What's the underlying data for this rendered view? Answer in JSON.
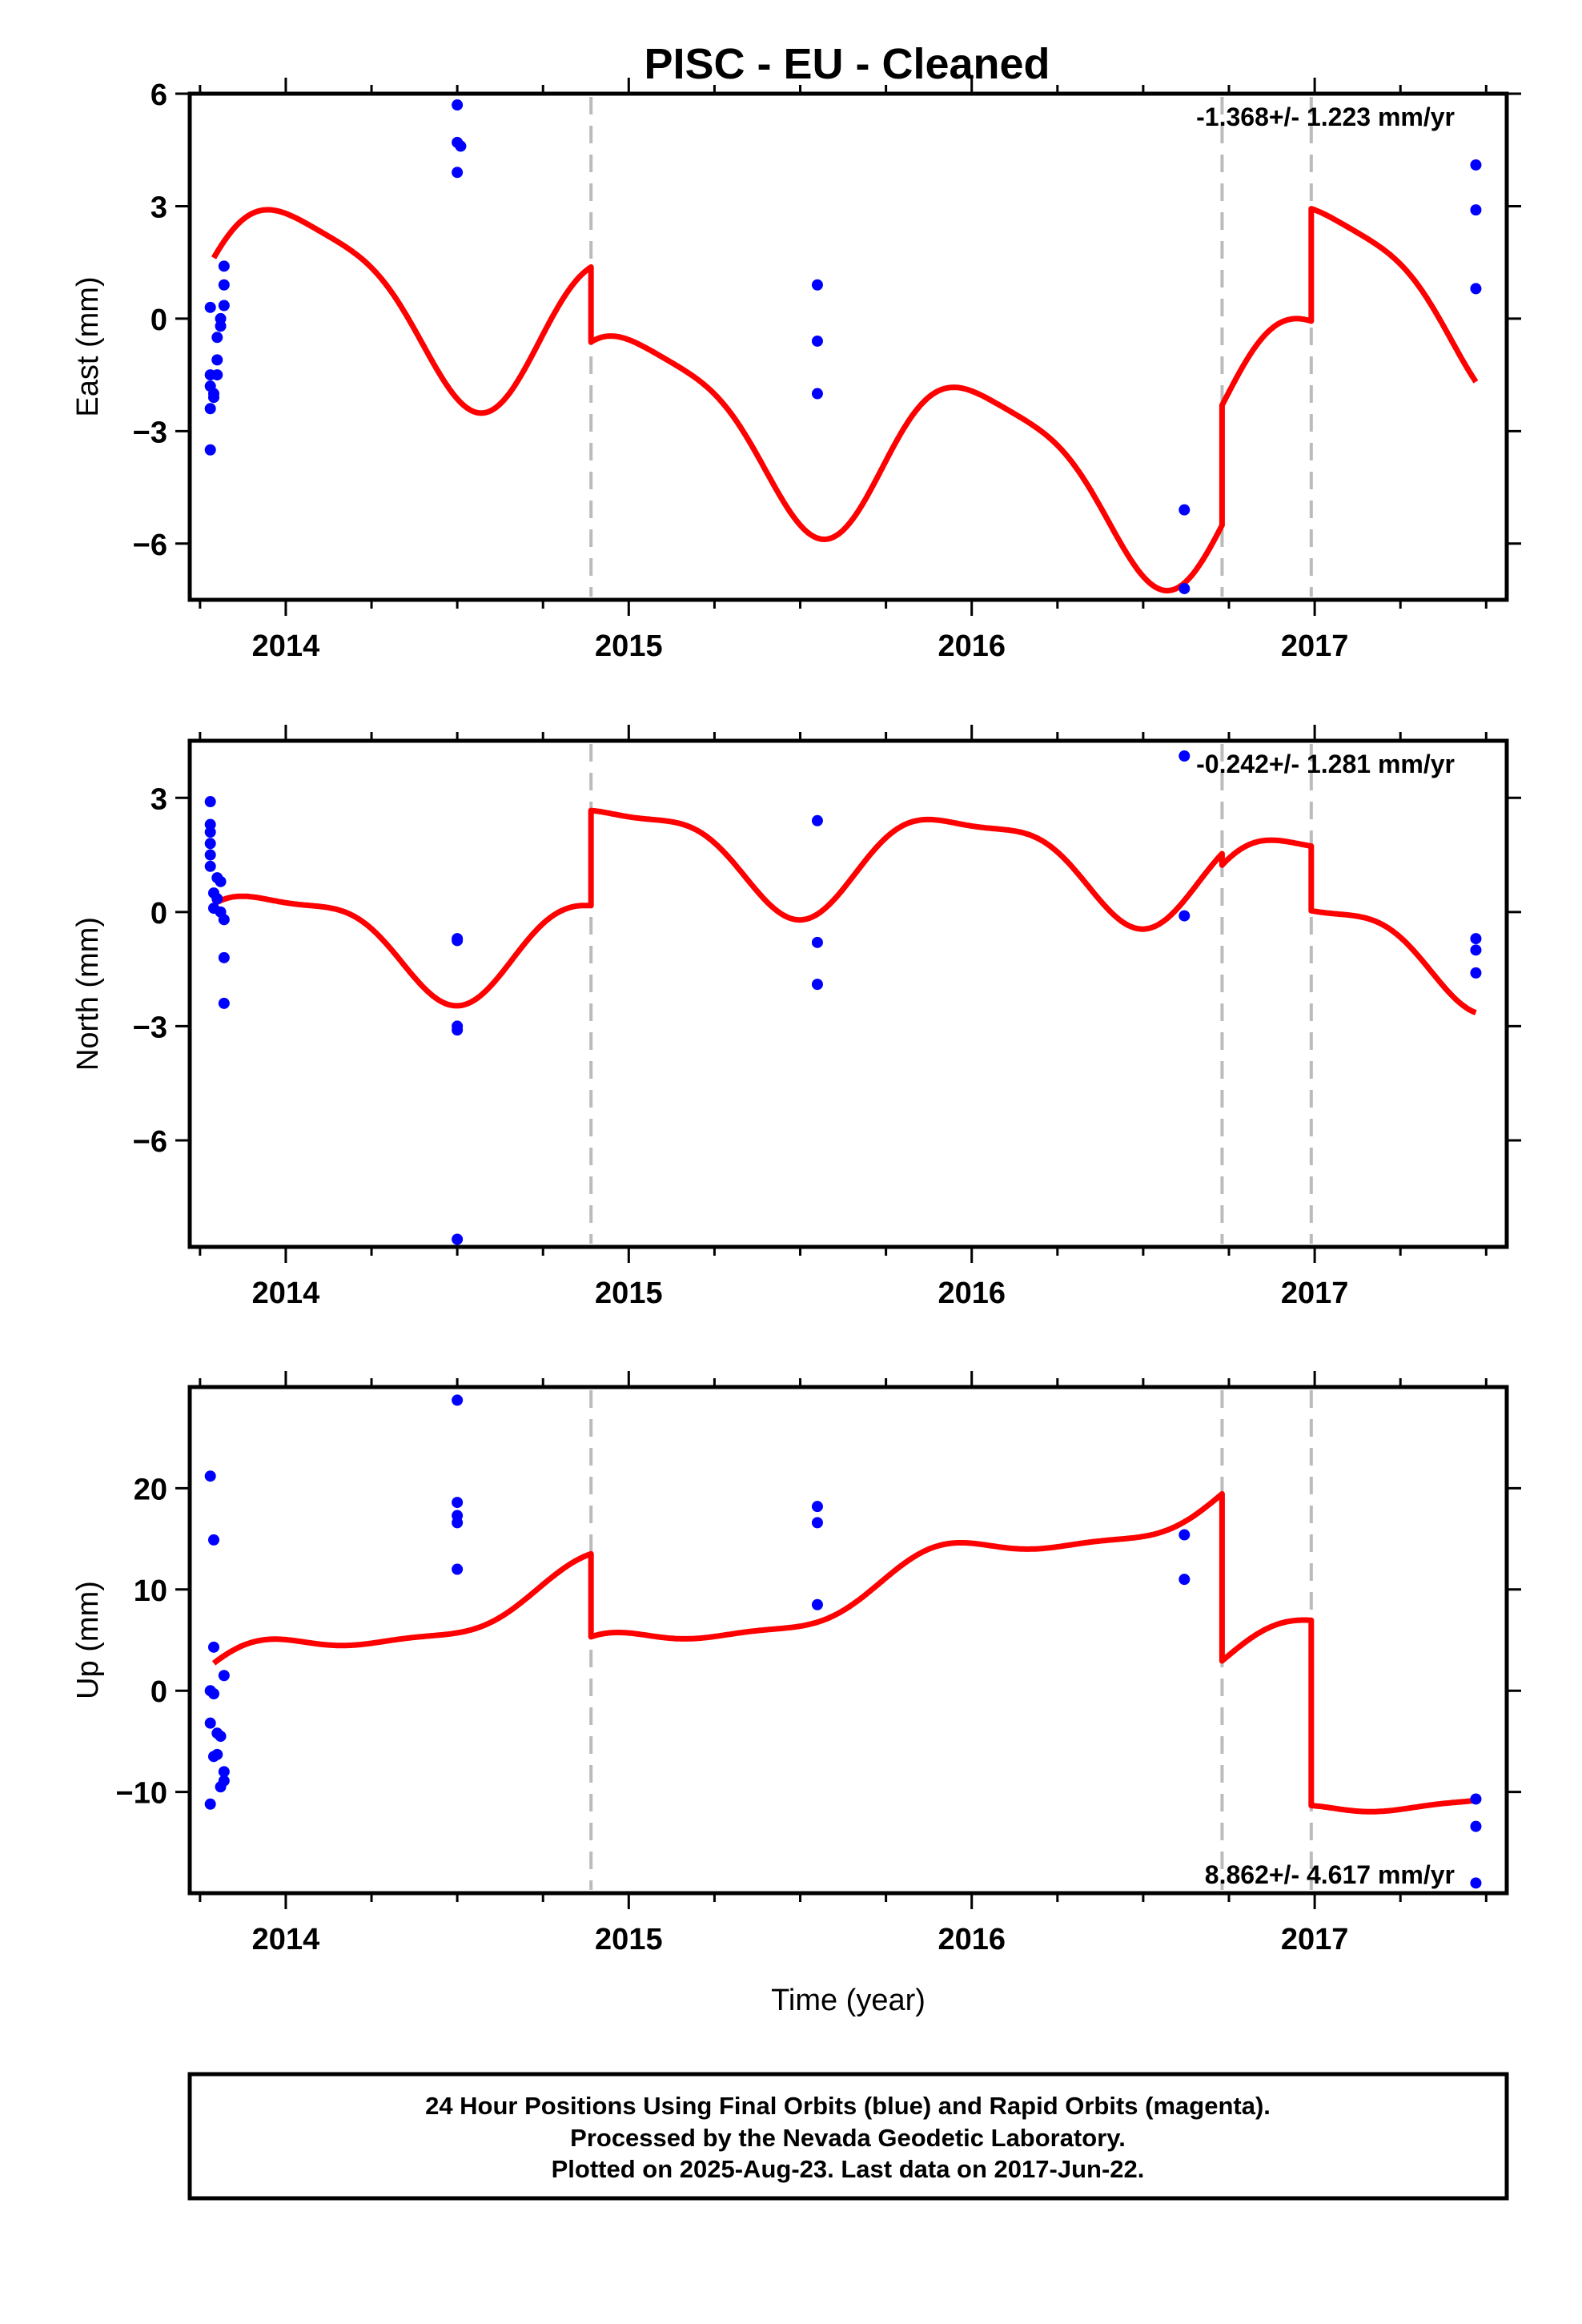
{
  "title": "PISC  - EU - Cleaned",
  "caption": {
    "line1": "24 Hour Positions Using Final Orbits (blue) and Rapid Orbits (magenta).",
    "line2": "Processed by the Nevada Geodetic Laboratory.",
    "line3": "Plotted on 2025-Aug-23. Last data on 2017-Jun-22."
  },
  "colors": {
    "data_points": "#0000ff",
    "model_line": "#ff0000",
    "break_lines": "#bbbbbb",
    "axes": "#000000"
  },
  "chart_data": [
    {
      "type": "scatter",
      "panel": "east",
      "ylabel": "East (mm)",
      "xlabel": "",
      "xlim": [
        2013.72,
        2017.56
      ],
      "ylim": [
        -7.5,
        6.0
      ],
      "yticks": [
        6,
        3,
        0,
        -3,
        -6
      ],
      "ytick_labels": [
        "6",
        "3",
        "0",
        "−3",
        "−6"
      ],
      "xticks": [
        2014,
        2015,
        2016,
        2017
      ],
      "xtick_labels": [
        "2014",
        "2015",
        "2016",
        "2017"
      ],
      "rate_text": "-1.368+/- 1.223 mm/yr",
      "rate_position": "top-right",
      "breaks": [
        2014.89,
        2016.73,
        2016.99
      ],
      "points": [
        [
          2013.78,
          0.3
        ],
        [
          2013.78,
          -1.5
        ],
        [
          2013.78,
          -1.8
        ],
        [
          2013.79,
          -2.0
        ],
        [
          2013.78,
          -2.4
        ],
        [
          2013.78,
          -3.5
        ],
        [
          2013.8,
          -0.5
        ],
        [
          2013.8,
          -1.1
        ],
        [
          2013.8,
          -1.5
        ],
        [
          2013.81,
          -0.2
        ],
        [
          2013.81,
          0.0
        ],
        [
          2013.82,
          0.35
        ],
        [
          2013.82,
          0.9
        ],
        [
          2013.82,
          1.4
        ],
        [
          2013.79,
          -2.1
        ],
        [
          2014.5,
          5.7
        ],
        [
          2014.5,
          4.7
        ],
        [
          2014.51,
          4.6
        ],
        [
          2014.5,
          3.9
        ],
        [
          2015.55,
          0.9
        ],
        [
          2015.55,
          -0.6
        ],
        [
          2015.55,
          -2.0
        ],
        [
          2016.62,
          -5.1
        ],
        [
          2016.62,
          -7.2
        ],
        [
          2017.47,
          4.1
        ],
        [
          2017.47,
          2.9
        ],
        [
          2017.47,
          0.8
        ]
      ],
      "model_segments": [
        {
          "t0": 2013.79,
          "t1": 2014.89,
          "offset": 1.2,
          "trend": -1.368,
          "amp1": 2.2,
          "phase1": 0.0,
          "amp2": 0.5,
          "phase2": 1.0
        },
        {
          "t0": 2014.89,
          "t1": 2016.73,
          "offset": -0.8,
          "trend": -1.368,
          "amp1": 2.2,
          "phase1": 0.0,
          "amp2": 0.5,
          "phase2": 1.0
        },
        {
          "t0": 2016.73,
          "t1": 2016.99,
          "offset": 2.4,
          "trend": -1.368,
          "amp1": 2.2,
          "phase1": 0.0,
          "amp2": 0.5,
          "phase2": 1.0
        },
        {
          "t0": 2016.99,
          "t1": 2017.47,
          "offset": 5.4,
          "trend": -1.368,
          "amp1": 2.2,
          "phase1": 0.0,
          "amp2": 0.5,
          "phase2": 1.0
        }
      ]
    },
    {
      "type": "scatter",
      "panel": "north",
      "ylabel": "North (mm)",
      "xlabel": "",
      "xlim": [
        2013.72,
        2017.56
      ],
      "ylim": [
        -8.8,
        4.5
      ],
      "yticks": [
        3,
        0,
        -3,
        -6
      ],
      "ytick_labels": [
        "3",
        "0",
        "−3",
        "−6"
      ],
      "xticks": [
        2014,
        2015,
        2016,
        2017
      ],
      "xtick_labels": [
        "2014",
        "2015",
        "2016",
        "2017"
      ],
      "rate_text": "-0.242+/- 1.281 mm/yr",
      "rate_position": "top-right",
      "breaks": [
        2014.89,
        2016.73,
        2016.99
      ],
      "points": [
        [
          2013.78,
          2.9
        ],
        [
          2013.78,
          2.3
        ],
        [
          2013.78,
          2.1
        ],
        [
          2013.78,
          1.8
        ],
        [
          2013.78,
          1.5
        ],
        [
          2013.78,
          1.2
        ],
        [
          2013.79,
          0.5
        ],
        [
          2013.8,
          0.9
        ],
        [
          2013.81,
          0.8
        ],
        [
          2013.8,
          0.35
        ],
        [
          2013.79,
          0.1
        ],
        [
          2013.81,
          0.0
        ],
        [
          2013.82,
          -0.2
        ],
        [
          2013.82,
          -1.2
        ],
        [
          2013.82,
          -2.4
        ],
        [
          2014.5,
          -0.7
        ],
        [
          2014.5,
          -0.75
        ],
        [
          2014.5,
          -3.0
        ],
        [
          2014.5,
          -3.1
        ],
        [
          2014.5,
          -8.6
        ],
        [
          2015.55,
          2.4
        ],
        [
          2015.55,
          -0.8
        ],
        [
          2015.55,
          -1.9
        ],
        [
          2016.62,
          4.1
        ],
        [
          2016.62,
          -0.1
        ],
        [
          2017.47,
          -0.7
        ],
        [
          2017.47,
          -1.0
        ],
        [
          2017.47,
          -1.6
        ]
      ],
      "model_segments": [
        {
          "t0": 2013.79,
          "t1": 2014.89,
          "offset": -0.6,
          "trend": -0.242,
          "amp1": 1.3,
          "phase1": 0.35,
          "amp2": 0.4,
          "phase2": 2.0
        },
        {
          "t0": 2014.89,
          "t1": 2016.73,
          "offset": 1.9,
          "trend": -0.242,
          "amp1": 1.3,
          "phase1": 0.35,
          "amp2": 0.4,
          "phase2": 2.0
        },
        {
          "t0": 2016.73,
          "t1": 2016.99,
          "offset": 1.6,
          "trend": -0.242,
          "amp1": 1.3,
          "phase1": 0.35,
          "amp2": 0.4,
          "phase2": 2.0
        },
        {
          "t0": 2016.99,
          "t1": 2017.47,
          "offset": -0.1,
          "trend": -0.242,
          "amp1": 1.3,
          "phase1": 0.35,
          "amp2": 0.4,
          "phase2": 2.0
        }
      ]
    },
    {
      "type": "scatter",
      "panel": "up",
      "ylabel": "Up (mm)",
      "xlabel": "Time (year)",
      "xlim": [
        2013.72,
        2017.56
      ],
      "ylim": [
        -20.0,
        30.0
      ],
      "yticks": [
        20,
        10,
        0,
        -10
      ],
      "ytick_labels": [
        "20",
        "10",
        "0",
        "−10"
      ],
      "xticks": [
        2014,
        2015,
        2016,
        2017
      ],
      "xtick_labels": [
        "2014",
        "2015",
        "2016",
        "2017"
      ],
      "rate_text": "8.862+/- 4.617 mm/yr",
      "rate_position": "bottom-right",
      "breaks": [
        2014.89,
        2016.73,
        2016.99
      ],
      "points": [
        [
          2013.78,
          21.2
        ],
        [
          2013.79,
          14.9
        ],
        [
          2013.79,
          4.3
        ],
        [
          2013.78,
          0.0
        ],
        [
          2013.79,
          -0.3
        ],
        [
          2013.78,
          -3.2
        ],
        [
          2013.79,
          -6.5
        ],
        [
          2013.8,
          -4.2
        ],
        [
          2013.8,
          -6.3
        ],
        [
          2013.81,
          -4.5
        ],
        [
          2013.82,
          -8.0
        ],
        [
          2013.82,
          -8.9
        ],
        [
          2013.81,
          -9.5
        ],
        [
          2013.82,
          1.5
        ],
        [
          2013.78,
          -11.2
        ],
        [
          2014.5,
          28.7
        ],
        [
          2014.5,
          18.6
        ],
        [
          2014.5,
          17.3
        ],
        [
          2014.5,
          16.6
        ],
        [
          2014.5,
          12.0
        ],
        [
          2015.55,
          18.2
        ],
        [
          2015.55,
          16.6
        ],
        [
          2015.55,
          8.5
        ],
        [
          2016.62,
          15.4
        ],
        [
          2016.62,
          11.0
        ],
        [
          2017.47,
          -10.7
        ],
        [
          2017.47,
          -13.4
        ],
        [
          2017.47,
          -19.0
        ]
      ],
      "model_segments": [
        {
          "t0": 2013.79,
          "t1": 2014.89,
          "offset": 1.3,
          "trend": 8.862,
          "amp1": 2.0,
          "phase1": 0.6,
          "amp2": 0.6,
          "phase2": 0.5
        },
        {
          "t0": 2014.89,
          "t1": 2016.73,
          "offset": -6.9,
          "trend": 8.862,
          "amp1": 2.0,
          "phase1": 0.6,
          "amp2": 0.6,
          "phase2": 0.5
        },
        {
          "t0": 2016.73,
          "t1": 2016.99,
          "offset": -23.4,
          "trend": 8.862,
          "amp1": 2.0,
          "phase1": 0.6,
          "amp2": 0.6,
          "phase2": 0.5
        },
        {
          "t0": 2016.99,
          "t1": 2017.47,
          "offset": -41.7,
          "trend": 8.862,
          "amp1": 2.0,
          "phase1": 0.6,
          "amp2": 0.6,
          "phase2": 0.5
        }
      ]
    }
  ]
}
